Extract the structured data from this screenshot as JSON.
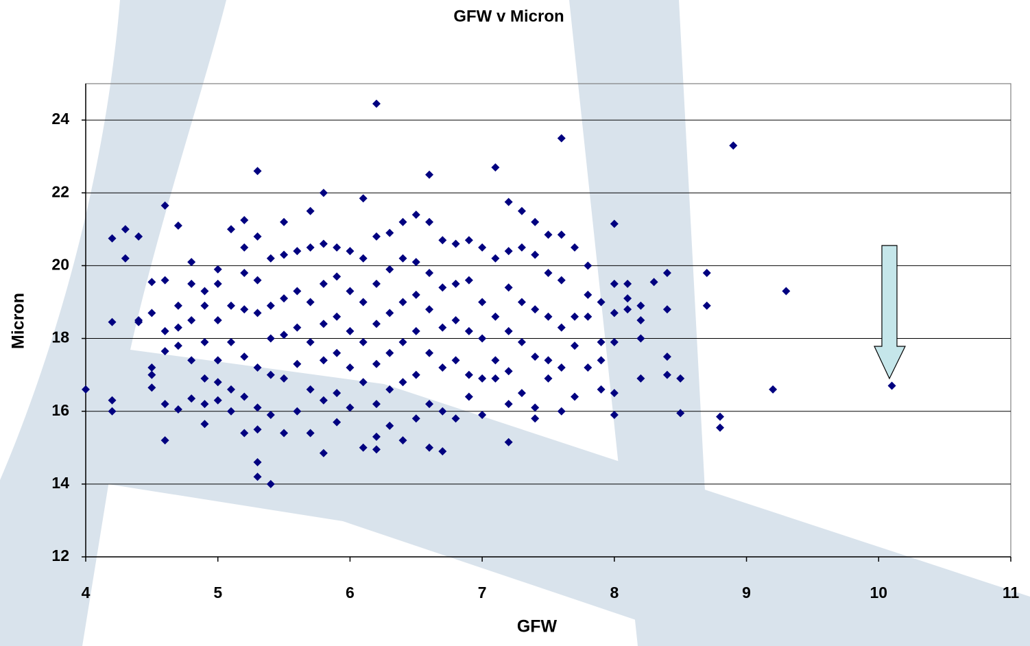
{
  "chart_data": {
    "type": "scatter",
    "title": "GFW v Micron",
    "x_label": "GFW",
    "y_label": "Micron",
    "color": "#000080",
    "grid": true,
    "xlim": [
      4,
      11
    ],
    "xticks": [
      4,
      5,
      6,
      7,
      8,
      9,
      10,
      11
    ],
    "ylim": [
      12,
      25
    ],
    "yticks": [
      12,
      14,
      16,
      18,
      20,
      22,
      24
    ],
    "x": [
      4.0,
      4.2,
      4.2,
      4.2,
      4.2,
      4.3,
      4.3,
      4.4,
      4.4,
      4.4,
      4.5,
      4.5,
      4.5,
      4.5,
      4.5,
      4.6,
      4.6,
      4.6,
      4.6,
      4.6,
      4.6,
      4.7,
      4.7,
      4.7,
      4.7,
      4.7,
      4.8,
      4.8,
      4.8,
      4.8,
      4.8,
      4.9,
      4.9,
      4.9,
      4.9,
      4.9,
      4.9,
      5.0,
      5.0,
      5.0,
      5.0,
      5.0,
      5.0,
      5.1,
      5.1,
      5.1,
      5.1,
      5.1,
      5.2,
      5.2,
      5.2,
      5.2,
      5.2,
      5.2,
      5.2,
      5.3,
      5.3,
      5.3,
      5.3,
      5.3,
      5.3,
      5.3,
      5.3,
      5.3,
      5.4,
      5.4,
      5.4,
      5.4,
      5.4,
      5.4,
      5.5,
      5.5,
      5.5,
      5.5,
      5.5,
      5.5,
      5.6,
      5.6,
      5.6,
      5.6,
      5.6,
      5.7,
      5.7,
      5.7,
      5.7,
      5.7,
      5.7,
      5.8,
      5.8,
      5.8,
      5.8,
      5.8,
      5.8,
      5.8,
      5.9,
      5.9,
      5.9,
      5.9,
      5.9,
      5.9,
      6.0,
      6.0,
      6.0,
      6.0,
      6.0,
      6.1,
      6.1,
      6.1,
      6.1,
      6.1,
      6.1,
      6.2,
      6.2,
      6.2,
      6.2,
      6.2,
      6.2,
      6.2,
      6.2,
      6.3,
      6.3,
      6.3,
      6.3,
      6.3,
      6.3,
      6.4,
      6.4,
      6.4,
      6.4,
      6.4,
      6.4,
      6.5,
      6.5,
      6.5,
      6.5,
      6.5,
      6.5,
      6.6,
      6.6,
      6.6,
      6.6,
      6.6,
      6.6,
      6.6,
      6.7,
      6.7,
      6.7,
      6.7,
      6.7,
      6.7,
      6.8,
      6.8,
      6.8,
      6.8,
      6.8,
      6.9,
      6.9,
      6.9,
      6.9,
      6.9,
      7.0,
      7.0,
      7.0,
      7.0,
      7.0,
      7.1,
      7.1,
      7.1,
      7.1,
      7.1,
      7.2,
      7.2,
      7.2,
      7.2,
      7.2,
      7.2,
      7.2,
      7.3,
      7.3,
      7.3,
      7.3,
      7.3,
      7.4,
      7.4,
      7.4,
      7.4,
      7.4,
      7.4,
      7.5,
      7.5,
      7.5,
      7.5,
      7.5,
      7.6,
      7.6,
      7.6,
      7.6,
      7.6,
      7.6,
      7.7,
      7.7,
      7.7,
      7.7,
      7.8,
      7.8,
      7.8,
      7.8,
      7.9,
      7.9,
      7.9,
      7.9,
      8.0,
      8.0,
      8.0,
      8.0,
      8.0,
      8.0,
      8.1,
      8.1,
      8.1,
      8.2,
      8.2,
      8.2,
      8.2,
      8.3,
      8.4,
      8.4,
      8.4,
      8.4,
      8.5,
      8.5,
      8.7,
      8.7,
      8.8,
      8.8,
      8.9,
      9.2,
      9.3,
      10.1
    ],
    "values": [
      16.6,
      20.75,
      18.45,
      16.3,
      16.0,
      21.0,
      20.2,
      20.8,
      18.5,
      18.45,
      19.55,
      18.7,
      17.2,
      17.0,
      16.65,
      21.65,
      19.6,
      18.2,
      17.65,
      16.2,
      15.2,
      21.1,
      18.9,
      18.3,
      17.8,
      16.05,
      20.1,
      19.5,
      18.5,
      17.4,
      16.35,
      19.3,
      18.9,
      17.9,
      16.9,
      16.2,
      15.65,
      19.9,
      19.5,
      18.5,
      17.4,
      16.8,
      16.3,
      21.0,
      18.9,
      17.9,
      16.6,
      16.0,
      21.25,
      20.5,
      19.8,
      18.8,
      17.5,
      16.4,
      15.4,
      22.6,
      20.8,
      19.6,
      18.7,
      17.2,
      16.1,
      15.5,
      14.6,
      14.2,
      20.2,
      18.9,
      18.0,
      17.0,
      15.9,
      14.0,
      21.2,
      20.3,
      19.1,
      18.1,
      16.9,
      15.4,
      20.4,
      19.3,
      18.3,
      17.3,
      16.0,
      21.5,
      20.5,
      19.0,
      17.9,
      16.6,
      15.4,
      22.0,
      20.6,
      19.5,
      18.4,
      17.4,
      16.3,
      14.85,
      20.5,
      19.7,
      18.6,
      17.6,
      16.5,
      15.7,
      20.4,
      19.3,
      18.2,
      17.2,
      16.1,
      21.85,
      20.2,
      19.0,
      17.9,
      16.8,
      15.0,
      24.45,
      20.8,
      19.5,
      18.4,
      17.3,
      16.2,
      15.3,
      14.95,
      20.9,
      19.9,
      18.7,
      17.6,
      16.6,
      15.6,
      21.2,
      20.2,
      19.0,
      17.9,
      16.8,
      15.2,
      21.4,
      20.1,
      19.2,
      18.2,
      17.0,
      15.8,
      22.5,
      21.2,
      19.8,
      18.8,
      17.6,
      16.2,
      15.0,
      20.7,
      19.4,
      18.3,
      17.2,
      16.0,
      14.9,
      20.6,
      19.5,
      18.5,
      17.4,
      15.8,
      20.7,
      19.6,
      18.2,
      17.0,
      16.4,
      20.5,
      19.0,
      18.0,
      16.9,
      15.9,
      22.7,
      20.2,
      18.6,
      17.4,
      16.9,
      21.75,
      20.4,
      19.4,
      18.2,
      17.1,
      16.2,
      15.15,
      21.5,
      20.5,
      19.0,
      17.9,
      16.5,
      21.2,
      20.3,
      18.8,
      17.5,
      16.1,
      15.8,
      20.85,
      19.8,
      18.6,
      17.4,
      16.9,
      23.5,
      20.85,
      19.6,
      18.3,
      17.2,
      16.0,
      20.5,
      18.6,
      17.8,
      16.4,
      20.0,
      19.2,
      18.6,
      17.2,
      19.0,
      17.9,
      17.4,
      16.6,
      21.15,
      19.5,
      18.7,
      17.9,
      16.5,
      15.9,
      19.5,
      19.1,
      18.8,
      18.9,
      18.5,
      18.0,
      16.9,
      19.55,
      19.8,
      18.8,
      17.5,
      17.0,
      16.9,
      15.95,
      19.8,
      18.9,
      15.85,
      15.55,
      23.3,
      16.6,
      19.3,
      16.7
    ]
  }
}
